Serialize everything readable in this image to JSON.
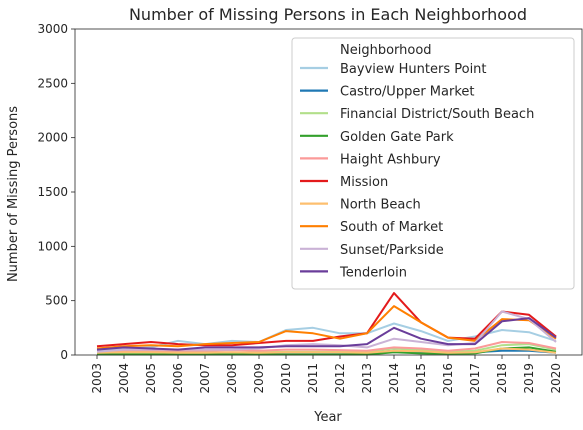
{
  "chart_data": {
    "type": "line",
    "title": "Number of Missing Persons in Each Neighborhood",
    "xlabel": "Year",
    "ylabel": "Number of Missing Persons",
    "x": [
      "2003",
      "2004",
      "2005",
      "2006",
      "2007",
      "2008",
      "2009",
      "2010",
      "2011",
      "2012",
      "2013",
      "2014",
      "2015",
      "2016",
      "2017",
      "2018",
      "2019",
      "2020"
    ],
    "ylim": [
      0,
      3000
    ],
    "yticks": [
      0,
      500,
      1000,
      1500,
      2000,
      2500,
      3000
    ],
    "grid": false,
    "legend": {
      "title": "Neighborhood",
      "placement": "top-right"
    },
    "series": [
      {
        "name": "Bayview Hunters Point",
        "color": "#a6cee3",
        "values": [
          40,
          60,
          70,
          130,
          100,
          130,
          120,
          230,
          250,
          200,
          200,
          290,
          220,
          130,
          170,
          230,
          210,
          130
        ]
      },
      {
        "name": "Castro/Upper Market",
        "color": "#1f78b4",
        "values": [
          20,
          25,
          25,
          20,
          20,
          20,
          20,
          25,
          25,
          25,
          20,
          40,
          30,
          20,
          25,
          40,
          40,
          20
        ]
      },
      {
        "name": "Financial District/South Beach",
        "color": "#b2df8a",
        "values": [
          15,
          20,
          20,
          20,
          20,
          20,
          25,
          30,
          30,
          30,
          35,
          60,
          45,
          30,
          40,
          90,
          100,
          50
        ]
      },
      {
        "name": "Golden Gate Park",
        "color": "#33a02c",
        "values": [
          5,
          5,
          5,
          5,
          5,
          5,
          5,
          5,
          5,
          5,
          5,
          25,
          15,
          10,
          15,
          60,
          70,
          30
        ]
      },
      {
        "name": "Haight Ashbury",
        "color": "#fb9a99",
        "values": [
          30,
          40,
          40,
          40,
          40,
          45,
          40,
          50,
          50,
          45,
          40,
          70,
          60,
          40,
          60,
          120,
          110,
          60
        ]
      },
      {
        "name": "Mission",
        "color": "#e31a1c",
        "values": [
          80,
          100,
          120,
          100,
          90,
          90,
          110,
          130,
          130,
          170,
          200,
          570,
          300,
          160,
          150,
          400,
          370,
          170
        ]
      },
      {
        "name": "North Beach",
        "color": "#fdbf6f",
        "values": [
          20,
          25,
          25,
          20,
          20,
          25,
          20,
          25,
          25,
          25,
          20,
          40,
          35,
          20,
          25,
          60,
          50,
          20
        ]
      },
      {
        "name": "South of Market",
        "color": "#ff7f00",
        "values": [
          60,
          80,
          90,
          80,
          100,
          110,
          120,
          220,
          200,
          150,
          200,
          450,
          300,
          160,
          130,
          330,
          320,
          150
        ]
      },
      {
        "name": "Sunset/Parkside",
        "color": "#cab2d6",
        "values": [
          30,
          50,
          50,
          50,
          50,
          50,
          60,
          90,
          100,
          90,
          70,
          150,
          120,
          90,
          110,
          400,
          330,
          120
        ]
      },
      {
        "name": "Tenderloin",
        "color": "#6a3d9a",
        "values": [
          50,
          70,
          60,
          50,
          70,
          70,
          70,
          80,
          80,
          80,
          100,
          250,
          150,
          100,
          100,
          310,
          340,
          160
        ]
      }
    ]
  }
}
